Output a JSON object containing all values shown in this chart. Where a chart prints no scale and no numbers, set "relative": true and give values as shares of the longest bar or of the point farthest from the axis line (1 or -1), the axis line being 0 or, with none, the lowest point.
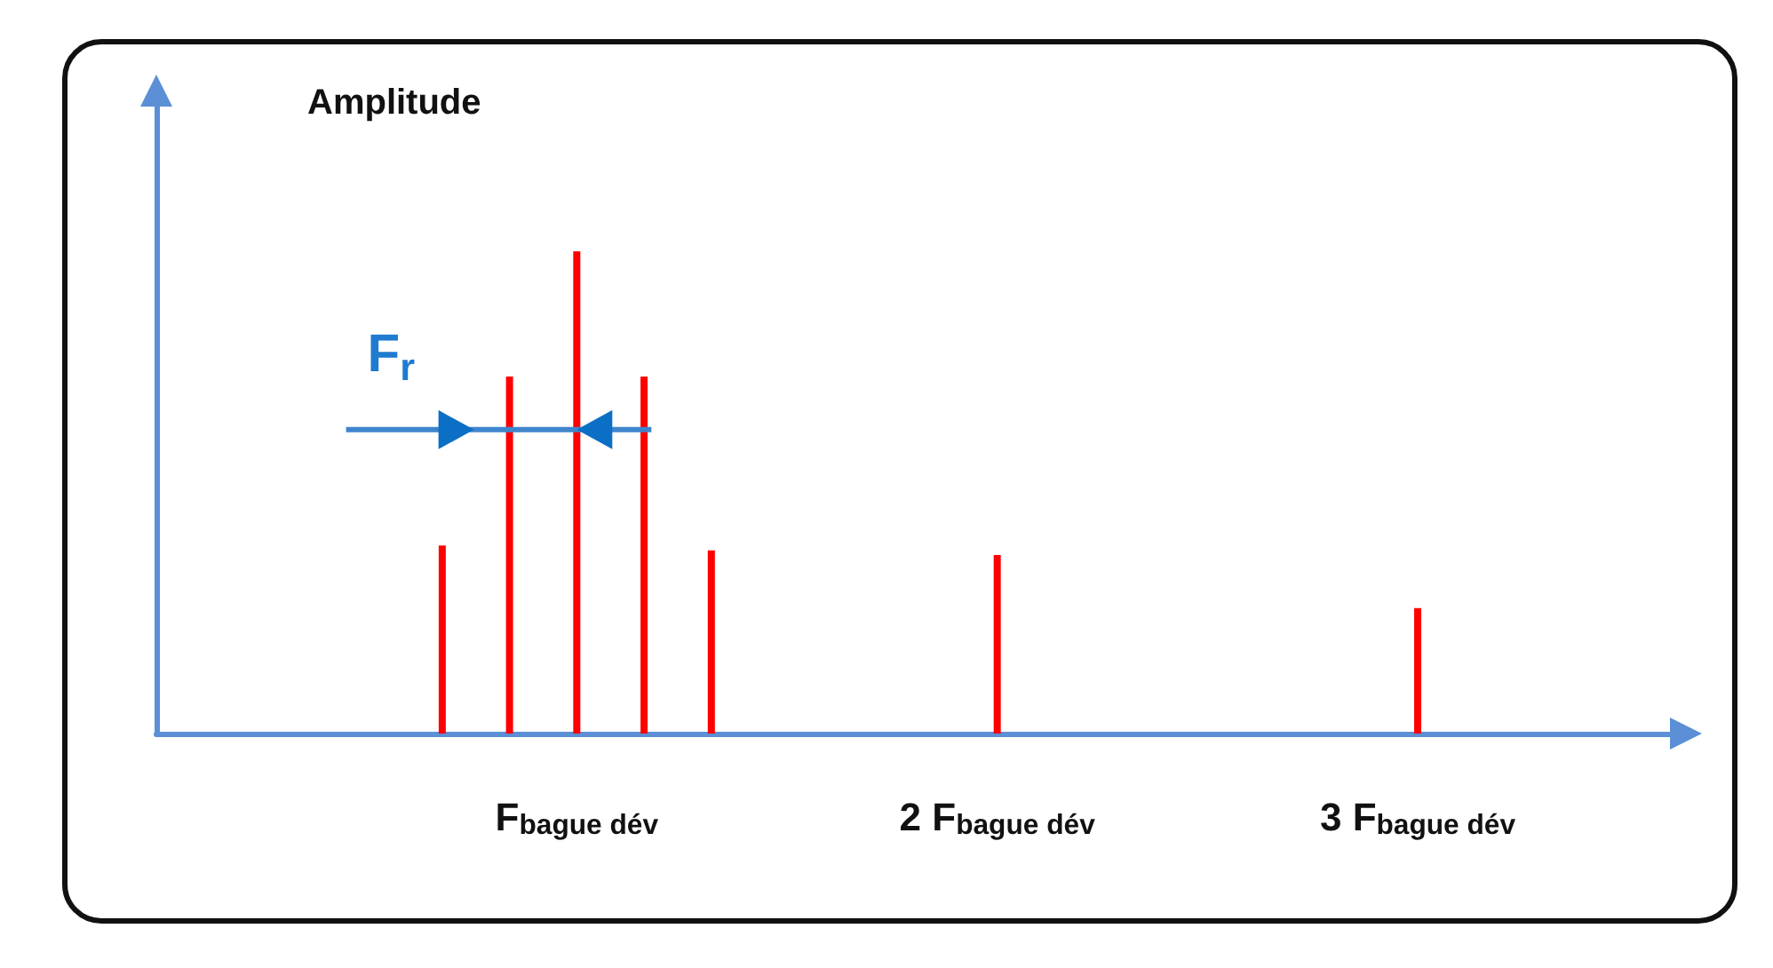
{
  "chart_data": {
    "type": "bar",
    "relative": true,
    "ylabel": "Amplitude",
    "x": [
      0.68,
      0.84,
      1,
      1.16,
      1.32,
      2,
      3
    ],
    "values": [
      0.39,
      0.74,
      1,
      0.74,
      0.38,
      0.37,
      0.26
    ],
    "color": "#ff0000",
    "xlim": [
      0,
      3.6
    ],
    "xticks": [
      {
        "value": 1,
        "label": "F$_{bague dév}$"
      },
      {
        "value": 2,
        "label": "2 F$_{bague dév}$"
      },
      {
        "value": 3,
        "label": "3 F$_{bague dév}$"
      }
    ],
    "grid": false,
    "annotations": [
      {
        "text": "F$_{r}$",
        "x": 0.84,
        "y": 0.63
      }
    ]
  }
}
